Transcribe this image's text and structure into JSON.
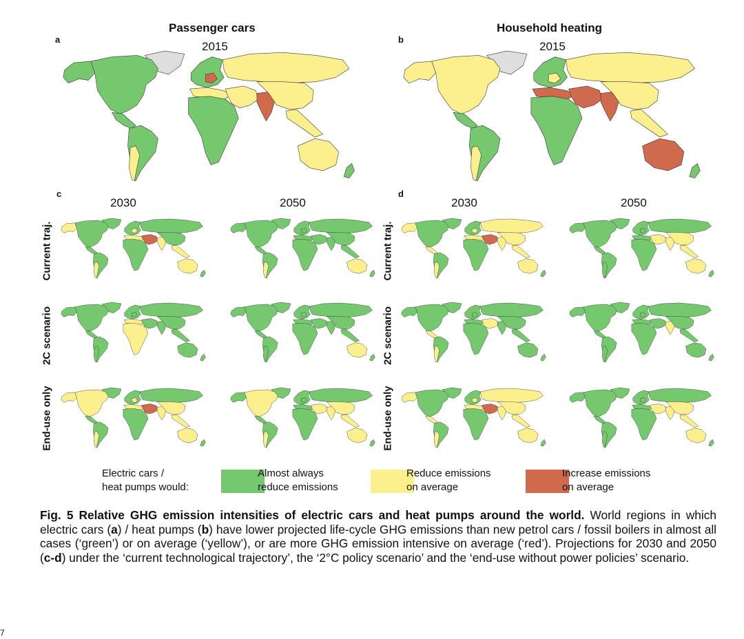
{
  "colors": {
    "green": "#76c86f",
    "yellow": "#fbef8e",
    "red": "#cf6a4c",
    "grey": "#dedede",
    "border": "#3a3a3a"
  },
  "panels": {
    "a": {
      "letter": "a",
      "title": "Passenger cars",
      "year": "2015"
    },
    "b": {
      "letter": "b",
      "title": "Household heating",
      "year": "2015"
    },
    "c": {
      "letter": "c",
      "years": [
        "2030",
        "2050"
      ]
    },
    "d": {
      "letter": "d",
      "years": [
        "2030",
        "2050"
      ]
    }
  },
  "rows": [
    "Current traj.",
    "2C scenario",
    "End-use only"
  ],
  "legend": {
    "lead_line1": "Electric cars /",
    "lead_line2": "heat pumps would:",
    "items": [
      {
        "line1": "Almost always",
        "line2": "reduce emissions",
        "color": "#76c86f"
      },
      {
        "line1": "Reduce emissions",
        "line2": "on average",
        "color": "#fbef8e"
      },
      {
        "line1": "Increase emissions",
        "line2": "on average",
        "color": "#cf6a4c"
      }
    ]
  },
  "caption": {
    "fig_label": "Fig. 5 Relative GHG emission intensities of electric cars and heat pumps around the world.",
    "t1": " World regions in which electric cars (",
    "a": "a",
    "t2": ") / heat pumps (",
    "b": "b",
    "t3": ") have lower projected life-cycle GHG emissions than new petrol cars / fossil boilers in almost all cases (‘green’) or on average (‘yellow’), or are more GHG emission intensive on average (‘red’). Projections for 2030 and 2050 (",
    "cd": "c-d",
    "t4": ") under the ‘current technological trajectory’, the ‘2°C policy scenario’ and the ‘end-use without power policies’ scenario."
  },
  "page_number": "7",
  "maps": [
    {
      "id": "a-2015",
      "fill": {
        "na": "green",
        "alaska": "green",
        "greenland": "grey",
        "ca": "green",
        "sa": "green",
        "sa_south": "yellow",
        "eu": "green",
        "eu_c": "red",
        "ru": "yellow",
        "ma": "yellow",
        "af": "green",
        "me": "yellow",
        "in": "red",
        "cn": "yellow",
        "sea": "yellow",
        "au": "yellow",
        "nz": "green"
      }
    },
    {
      "id": "b-2015",
      "fill": {
        "na": "yellow",
        "alaska": "yellow",
        "greenland": "grey",
        "ca": "green",
        "sa": "green",
        "sa_south": "yellow",
        "eu": "green",
        "eu_c": "yellow",
        "ru": "yellow",
        "ma": "red",
        "af": "green",
        "me": "red",
        "in": "red",
        "cn": "yellow",
        "sea": "yellow",
        "au": "red",
        "nz": "green"
      }
    },
    {
      "id": "c-2030-current",
      "fill": {
        "na": "green",
        "alaska": "yellow",
        "greenland": "green",
        "ca": "green",
        "sa": "green",
        "sa_south": "yellow",
        "eu": "green",
        "eu_c": "yellow",
        "ru": "green",
        "ma": "yellow",
        "af": "green",
        "me": "red",
        "in": "yellow",
        "cn": "green",
        "sea": "yellow",
        "au": "yellow",
        "nz": "green"
      }
    },
    {
      "id": "c-2050-current",
      "fill": {
        "na": "green",
        "alaska": "green",
        "greenland": "green",
        "ca": "green",
        "sa": "green",
        "sa_south": "yellow",
        "eu": "green",
        "eu_c": "green",
        "ru": "green",
        "ma": "green",
        "af": "green",
        "me": "green",
        "in": "green",
        "cn": "green",
        "sea": "green",
        "au": "yellow",
        "nz": "green"
      }
    },
    {
      "id": "d-2030-current",
      "fill": {
        "na": "green",
        "alaska": "yellow",
        "greenland": "green",
        "ca": "yellow",
        "sa": "green",
        "sa_south": "yellow",
        "eu": "green",
        "eu_c": "yellow",
        "ru": "yellow",
        "ma": "yellow",
        "af": "green",
        "me": "red",
        "in": "yellow",
        "cn": "yellow",
        "sea": "yellow",
        "au": "yellow",
        "nz": "green"
      }
    },
    {
      "id": "d-2050-current",
      "fill": {
        "na": "green",
        "alaska": "green",
        "greenland": "green",
        "ca": "green",
        "sa": "green",
        "sa_south": "green",
        "eu": "green",
        "eu_c": "green",
        "ru": "green",
        "ma": "green",
        "af": "green",
        "me": "yellow",
        "in": "yellow",
        "cn": "yellow",
        "sea": "yellow",
        "au": "yellow",
        "nz": "green"
      }
    },
    {
      "id": "c-2030-2c",
      "fill": {
        "na": "green",
        "alaska": "green",
        "greenland": "green",
        "ca": "green",
        "sa": "green",
        "sa_south": "green",
        "eu": "green",
        "eu_c": "green",
        "ru": "green",
        "ma": "yellow",
        "af": "yellow",
        "me": "green",
        "in": "green",
        "cn": "green",
        "sea": "green",
        "au": "green",
        "nz": "green"
      }
    },
    {
      "id": "c-2050-2c",
      "fill": {
        "na": "green",
        "alaska": "green",
        "greenland": "green",
        "ca": "green",
        "sa": "green",
        "sa_south": "green",
        "eu": "green",
        "eu_c": "green",
        "ru": "green",
        "ma": "green",
        "af": "green",
        "me": "green",
        "in": "green",
        "cn": "green",
        "sea": "green",
        "au": "yellow",
        "nz": "green"
      }
    },
    {
      "id": "d-2030-2c",
      "fill": {
        "na": "green",
        "alaska": "green",
        "greenland": "green",
        "ca": "yellow",
        "sa": "green",
        "sa_south": "yellow",
        "eu": "green",
        "eu_c": "green",
        "ru": "green",
        "ma": "green",
        "af": "green",
        "me": "yellow",
        "in": "green",
        "cn": "green",
        "sea": "green",
        "au": "green",
        "nz": "green"
      }
    },
    {
      "id": "d-2050-2c",
      "fill": {
        "na": "green",
        "alaska": "green",
        "greenland": "green",
        "ca": "green",
        "sa": "green",
        "sa_south": "green",
        "eu": "green",
        "eu_c": "green",
        "ru": "green",
        "ma": "green",
        "af": "green",
        "me": "green",
        "in": "yellow",
        "cn": "green",
        "sea": "green",
        "au": "green",
        "nz": "green"
      }
    },
    {
      "id": "c-2030-enduse",
      "fill": {
        "na": "yellow",
        "alaska": "yellow",
        "greenland": "green",
        "ca": "green",
        "sa": "green",
        "sa_south": "yellow",
        "eu": "green",
        "eu_c": "yellow",
        "ru": "green",
        "ma": "yellow",
        "af": "green",
        "me": "red",
        "in": "yellow",
        "cn": "yellow",
        "sea": "yellow",
        "au": "yellow",
        "nz": "green"
      }
    },
    {
      "id": "c-2050-enduse",
      "fill": {
        "na": "yellow",
        "alaska": "green",
        "greenland": "green",
        "ca": "green",
        "sa": "green",
        "sa_south": "yellow",
        "eu": "green",
        "eu_c": "green",
        "ru": "green",
        "ma": "green",
        "af": "green",
        "me": "yellow",
        "in": "yellow",
        "cn": "yellow",
        "sea": "yellow",
        "au": "yellow",
        "nz": "green"
      }
    },
    {
      "id": "d-2030-enduse",
      "fill": {
        "na": "green",
        "alaska": "yellow",
        "greenland": "green",
        "ca": "yellow",
        "sa": "green",
        "sa_south": "yellow",
        "eu": "green",
        "eu_c": "yellow",
        "ru": "yellow",
        "ma": "yellow",
        "af": "green",
        "me": "red",
        "in": "yellow",
        "cn": "yellow",
        "sea": "yellow",
        "au": "yellow",
        "nz": "green"
      }
    },
    {
      "id": "d-2050-enduse",
      "fill": {
        "na": "green",
        "alaska": "green",
        "greenland": "green",
        "ca": "green",
        "sa": "green",
        "sa_south": "green",
        "eu": "green",
        "eu_c": "green",
        "ru": "green",
        "ma": "green",
        "af": "green",
        "me": "yellow",
        "in": "yellow",
        "cn": "yellow",
        "sea": "yellow",
        "au": "yellow",
        "nz": "green"
      }
    }
  ]
}
